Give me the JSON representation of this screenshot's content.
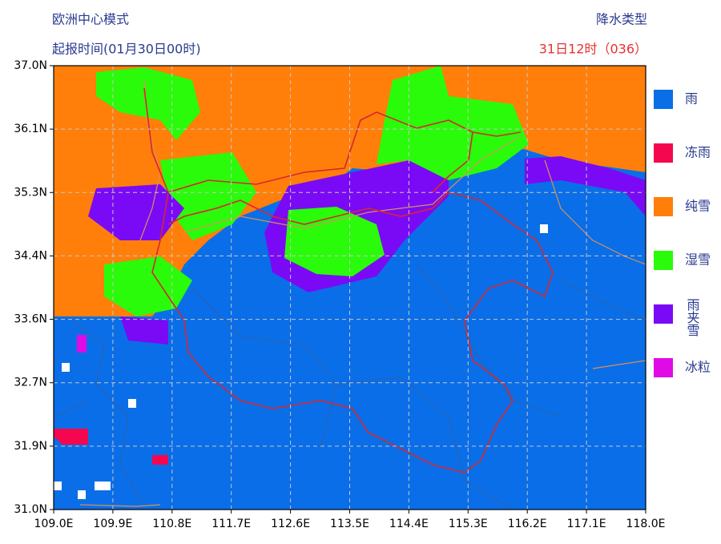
{
  "header": {
    "model": "欧洲中心模式",
    "init_time": "起报时间(01月30日00时)",
    "product": "降水类型",
    "valid_time": "31日12时（036）"
  },
  "map": {
    "x_labels": [
      "109.0E",
      "109.9E",
      "110.8E",
      "111.7E",
      "112.6E",
      "113.5E",
      "114.4E",
      "115.3E",
      "116.2E",
      "117.1E",
      "118.0E"
    ],
    "y_labels": [
      "37.0N",
      "36.1N",
      "35.3N",
      "34.4N",
      "33.6N",
      "32.7N",
      "31.9N",
      "31.0N"
    ]
  },
  "legend": [
    {
      "label": "雨",
      "color": "#0a6ee8"
    },
    {
      "label": "冻雨",
      "color": "#f5074f"
    },
    {
      "label": "纯雪",
      "color": "#ff7f0a"
    },
    {
      "label": "湿雪",
      "color": "#2afb0a"
    },
    {
      "label": "雨夹雪",
      "color": "#7a0af5"
    },
    {
      "label": "冰粒",
      "color": "#e00ae6"
    }
  ]
}
